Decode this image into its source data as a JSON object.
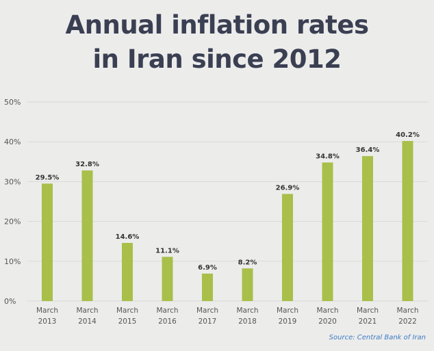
{
  "chart_data": {
    "type": "bar",
    "title_lines": [
      "Annual inflation rates",
      "in Iran since 2012"
    ],
    "categories": [
      [
        "March",
        "2013"
      ],
      [
        "March",
        "2014"
      ],
      [
        "March",
        "2015"
      ],
      [
        "March",
        "2016"
      ],
      [
        "March",
        "2017"
      ],
      [
        "March",
        "2018"
      ],
      [
        "March",
        "2019"
      ],
      [
        "March",
        "2020"
      ],
      [
        "March",
        "2021"
      ],
      [
        "March",
        "2022"
      ]
    ],
    "values": [
      29.5,
      32.8,
      14.6,
      11.1,
      6.9,
      8.2,
      26.9,
      34.8,
      36.4,
      40.2
    ],
    "value_labels": [
      "29.5%",
      "32.8%",
      "14.6%",
      "11.1%",
      "6.9%",
      "8.2%",
      "26.9%",
      "34.8%",
      "36.4%",
      "40.2%"
    ],
    "yticks": [
      0,
      10,
      20,
      30,
      40,
      50
    ],
    "ytick_labels": [
      "0%",
      "10%",
      "20%",
      "30%",
      "40%",
      "50%"
    ],
    "ylim": [
      0,
      50
    ],
    "xlabel": "",
    "ylabel": "",
    "grid": true,
    "bar_color": "#a8bf4a",
    "grid_color": "#d9d9d6",
    "source": "Source: Central Bank of Iran"
  }
}
